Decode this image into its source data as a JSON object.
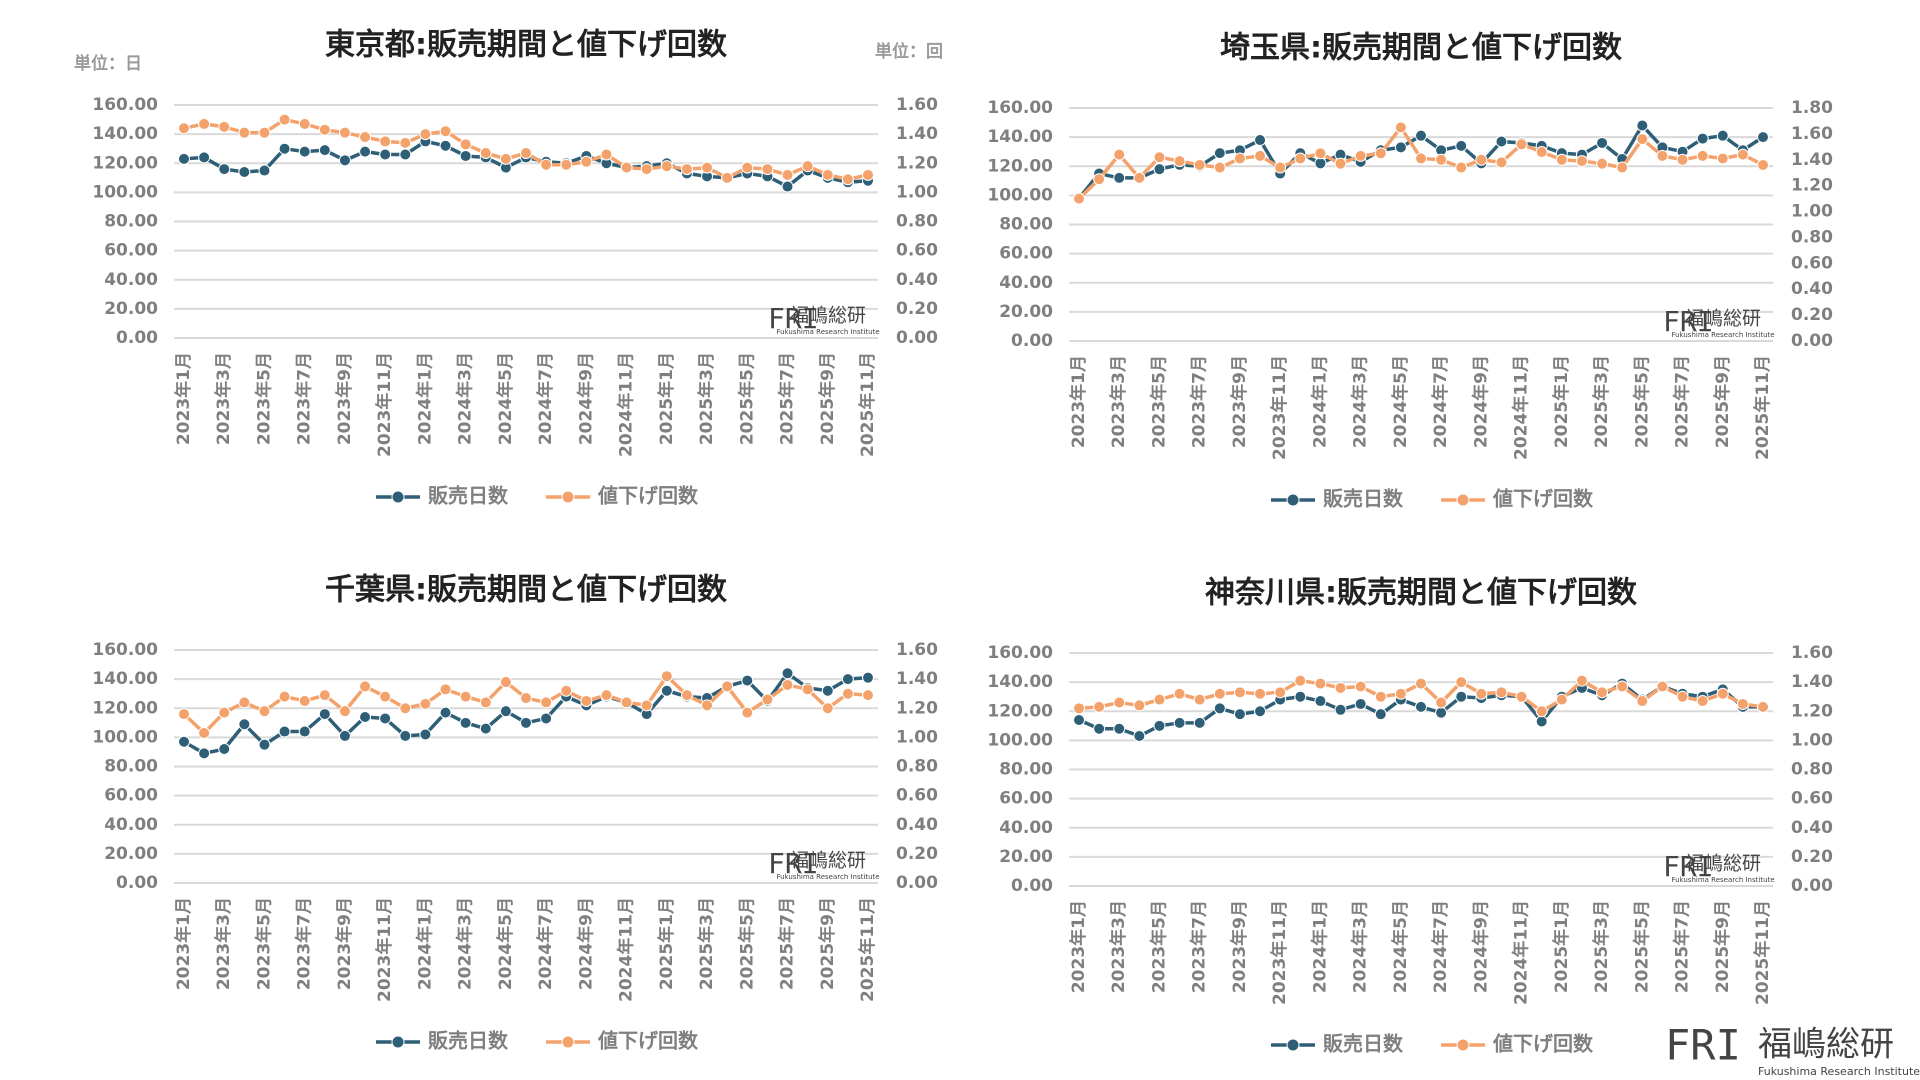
{
  "logo": {
    "mark": "FRI",
    "name": "福嶋総研",
    "sub": "Fukushima Research Institute"
  },
  "chart_data": [
    {
      "type": "line",
      "title": "東京都:販売期間と値下げ回数",
      "y_unit": "単位：日",
      "y2_unit": "単位：回",
      "categories": [
        "2023年1月",
        null,
        "2023年3月",
        null,
        "2023年5月",
        null,
        "2023年7月",
        null,
        "2023年9月",
        null,
        "2023年11月",
        null,
        "2024年1月",
        null,
        "2024年3月",
        null,
        "2024年5月",
        null,
        "2024年7月",
        null,
        "2024年9月",
        null,
        "2024年11月",
        null,
        "2025年1月",
        null,
        "2025年3月",
        null,
        "2025年5月",
        null,
        "2025年7月",
        null,
        "2025年9月",
        null,
        "2025年11月"
      ],
      "series": [
        {
          "name": "販売日数",
          "color": "#2e5f77",
          "values": [
            123,
            124,
            116,
            114,
            115,
            130,
            128,
            129,
            122,
            128,
            126,
            126,
            135,
            132,
            125,
            124,
            117,
            124,
            121,
            120,
            125,
            120,
            117,
            118,
            120,
            113,
            111,
            110,
            113,
            111,
            104,
            115,
            110,
            107,
            108
          ]
        },
        {
          "name": "値下げ回数",
          "color": "#f4a26b",
          "axis": "y2",
          "values": [
            1.44,
            1.47,
            1.45,
            1.41,
            1.41,
            1.5,
            1.47,
            1.43,
            1.41,
            1.38,
            1.35,
            1.34,
            1.4,
            1.42,
            1.33,
            1.27,
            1.23,
            1.27,
            1.19,
            1.19,
            1.21,
            1.26,
            1.17,
            1.16,
            1.18,
            1.16,
            1.17,
            1.1,
            1.17,
            1.16,
            1.12,
            1.18,
            1.12,
            1.09,
            1.12
          ]
        }
      ],
      "ylim": [
        0,
        160
      ],
      "yticks": [
        {
          "value": 0,
          "label": "0.00"
        },
        {
          "value": 20,
          "label": "20.00"
        },
        {
          "value": 40,
          "label": "40.00"
        },
        {
          "value": 60,
          "label": "60.00"
        },
        {
          "value": 80,
          "label": "80.00"
        },
        {
          "value": 100,
          "label": "100.00"
        },
        {
          "value": 120,
          "label": "120.00"
        },
        {
          "value": 140,
          "label": "140.00"
        },
        {
          "value": 160,
          "label": "160.00"
        }
      ],
      "y2lim": [
        0,
        1.6
      ],
      "y2ticks": [
        {
          "value": 0,
          "label": "0.00"
        },
        {
          "value": 0.2,
          "label": "0.20"
        },
        {
          "value": 0.4,
          "label": "0.40"
        },
        {
          "value": 0.6,
          "label": "0.60"
        },
        {
          "value": 0.8,
          "label": "0.80"
        },
        {
          "value": 1,
          "label": "1.00"
        },
        {
          "value": 1.2,
          "label": "1.20"
        },
        {
          "value": 1.4,
          "label": "1.40"
        },
        {
          "value": 1.6,
          "label": "1.60"
        }
      ],
      "grid": true,
      "legend": "bottom"
    },
    {
      "type": "line",
      "title": "埼玉県:販売期間と値下げ回数",
      "categories": [
        "2023年1月",
        null,
        "2023年3月",
        null,
        "2023年5月",
        null,
        "2023年7月",
        null,
        "2023年9月",
        null,
        "2023年11月",
        null,
        "2024年1月",
        null,
        "2024年3月",
        null,
        "2024年5月",
        null,
        "2024年7月",
        null,
        "2024年9月",
        null,
        "2024年11月",
        null,
        "2025年1月",
        null,
        "2025年3月",
        null,
        "2025年5月",
        null,
        "2025年7月",
        null,
        "2025年9月",
        null,
        "2025年11月"
      ],
      "series": [
        {
          "name": "販売日数",
          "color": "#2e5f77",
          "values": [
            98,
            115,
            112,
            112,
            118,
            121,
            120,
            129,
            131,
            138,
            115,
            129,
            122,
            128,
            123,
            131,
            133,
            141,
            131,
            134,
            122,
            137,
            136,
            134,
            129,
            128,
            136,
            125,
            148,
            133,
            130,
            139,
            141,
            131,
            140
          ]
        },
        {
          "name": "値下げ回数",
          "color": "#f4a26b",
          "axis": "y2",
          "values": [
            1.1,
            1.25,
            1.44,
            1.26,
            1.42,
            1.39,
            1.36,
            1.34,
            1.41,
            1.43,
            1.34,
            1.41,
            1.45,
            1.37,
            1.43,
            1.45,
            1.65,
            1.41,
            1.4,
            1.34,
            1.4,
            1.38,
            1.52,
            1.46,
            1.4,
            1.39,
            1.37,
            1.34,
            1.56,
            1.43,
            1.4,
            1.43,
            1.41,
            1.44,
            1.36
          ]
        }
      ],
      "ylim": [
        0,
        160
      ],
      "yticks": [
        {
          "value": 0,
          "label": "0.00"
        },
        {
          "value": 20,
          "label": "20.00"
        },
        {
          "value": 40,
          "label": "40.00"
        },
        {
          "value": 60,
          "label": "60.00"
        },
        {
          "value": 80,
          "label": "80.00"
        },
        {
          "value": 100,
          "label": "100.00"
        },
        {
          "value": 120,
          "label": "120.00"
        },
        {
          "value": 140,
          "label": "140.00"
        },
        {
          "value": 160,
          "label": "160.00"
        }
      ],
      "y2lim": [
        0,
        1.8
      ],
      "y2ticks": [
        {
          "value": 0,
          "label": "0.00"
        },
        {
          "value": 0.2,
          "label": "0.20"
        },
        {
          "value": 0.4,
          "label": "0.40"
        },
        {
          "value": 0.6,
          "label": "0.60"
        },
        {
          "value": 0.8,
          "label": "0.80"
        },
        {
          "value": 1,
          "label": "1.00"
        },
        {
          "value": 1.2,
          "label": "1.20"
        },
        {
          "value": 1.4,
          "label": "1.40"
        },
        {
          "value": 1.6,
          "label": "1.60"
        },
        {
          "value": 1.8,
          "label": "1.80"
        }
      ],
      "grid": true,
      "legend": "bottom"
    },
    {
      "type": "line",
      "title": "千葉県:販売期間と値下げ回数",
      "categories": [
        "2023年1月",
        null,
        "2023年3月",
        null,
        "2023年5月",
        null,
        "2023年7月",
        null,
        "2023年9月",
        null,
        "2023年11月",
        null,
        "2024年1月",
        null,
        "2024年3月",
        null,
        "2024年5月",
        null,
        "2024年7月",
        null,
        "2024年9月",
        null,
        "2024年11月",
        null,
        "2025年1月",
        null,
        "2025年3月",
        null,
        "2025年5月",
        null,
        "2025年7月",
        null,
        "2025年9月",
        null,
        "2025年11月"
      ],
      "series": [
        {
          "name": "販売日数",
          "color": "#2e5f77",
          "values": [
            97,
            89,
            92,
            109,
            95,
            104,
            104,
            116,
            101,
            114,
            113,
            101,
            102,
            117,
            110,
            106,
            118,
            110,
            113,
            128,
            122,
            128,
            124,
            116,
            132,
            128,
            127,
            135,
            139,
            125,
            144,
            134,
            132,
            140,
            141
          ]
        },
        {
          "name": "値下げ回数",
          "color": "#f4a26b",
          "axis": "y2",
          "values": [
            1.16,
            1.03,
            1.17,
            1.24,
            1.18,
            1.28,
            1.25,
            1.29,
            1.18,
            1.35,
            1.28,
            1.2,
            1.23,
            1.33,
            1.28,
            1.24,
            1.38,
            1.27,
            1.24,
            1.32,
            1.25,
            1.29,
            1.24,
            1.22,
            1.42,
            1.29,
            1.22,
            1.35,
            1.17,
            1.26,
            1.36,
            1.33,
            1.2,
            1.3,
            1.29
          ]
        }
      ],
      "ylim": [
        0,
        160
      ],
      "yticks": [
        {
          "value": 0,
          "label": "0.00"
        },
        {
          "value": 20,
          "label": "20.00"
        },
        {
          "value": 40,
          "label": "40.00"
        },
        {
          "value": 60,
          "label": "60.00"
        },
        {
          "value": 80,
          "label": "80.00"
        },
        {
          "value": 100,
          "label": "100.00"
        },
        {
          "value": 120,
          "label": "120.00"
        },
        {
          "value": 140,
          "label": "140.00"
        },
        {
          "value": 160,
          "label": "160.00"
        }
      ],
      "y2lim": [
        0,
        1.6
      ],
      "y2ticks": [
        {
          "value": 0,
          "label": "0.00"
        },
        {
          "value": 0.2,
          "label": "0.20"
        },
        {
          "value": 0.4,
          "label": "0.40"
        },
        {
          "value": 0.6,
          "label": "0.60"
        },
        {
          "value": 0.8,
          "label": "0.80"
        },
        {
          "value": 1,
          "label": "1.00"
        },
        {
          "value": 1.2,
          "label": "1.20"
        },
        {
          "value": 1.4,
          "label": "1.40"
        },
        {
          "value": 1.6,
          "label": "1.60"
        }
      ],
      "grid": true,
      "legend": "bottom"
    },
    {
      "type": "line",
      "title": "神奈川県:販売期間と値下げ回数",
      "categories": [
        "2023年1月",
        null,
        "2023年3月",
        null,
        "2023年5月",
        null,
        "2023年7月",
        null,
        "2023年9月",
        null,
        "2023年11月",
        null,
        "2024年1月",
        null,
        "2024年3月",
        null,
        "2024年5月",
        null,
        "2024年7月",
        null,
        "2024年9月",
        null,
        "2024年11月",
        null,
        "2025年1月",
        null,
        "2025年3月",
        null,
        "2025年5月",
        null,
        "2025年7月",
        null,
        "2025年9月",
        null,
        "2025年11月"
      ],
      "series": [
        {
          "name": "販売日数",
          "color": "#2e5f77",
          "values": [
            114,
            108,
            108,
            103,
            110,
            112,
            112,
            122,
            118,
            120,
            128,
            130,
            127,
            121,
            125,
            118,
            128,
            123,
            119,
            130,
            129,
            131,
            130,
            113,
            130,
            136,
            131,
            139,
            128,
            137,
            132,
            130,
            135,
            123,
            123
          ]
        },
        {
          "name": "値下げ回数",
          "color": "#f4a26b",
          "axis": "y2",
          "values": [
            1.22,
            1.23,
            1.26,
            1.24,
            1.28,
            1.32,
            1.28,
            1.32,
            1.33,
            1.32,
            1.33,
            1.41,
            1.39,
            1.36,
            1.37,
            1.3,
            1.32,
            1.39,
            1.26,
            1.4,
            1.32,
            1.33,
            1.3,
            1.2,
            1.28,
            1.41,
            1.33,
            1.37,
            1.27,
            1.37,
            1.3,
            1.27,
            1.32,
            1.25,
            1.23
          ]
        }
      ],
      "ylim": [
        0,
        160
      ],
      "yticks": [
        {
          "value": 0,
          "label": "0.00"
        },
        {
          "value": 20,
          "label": "20.00"
        },
        {
          "value": 40,
          "label": "40.00"
        },
        {
          "value": 60,
          "label": "60.00"
        },
        {
          "value": 80,
          "label": "80.00"
        },
        {
          "value": 100,
          "label": "100.00"
        },
        {
          "value": 120,
          "label": "120.00"
        },
        {
          "value": 140,
          "label": "140.00"
        },
        {
          "value": 160,
          "label": "160.00"
        }
      ],
      "y2lim": [
        0,
        1.6
      ],
      "y2ticks": [
        {
          "value": 0,
          "label": "0.00"
        },
        {
          "value": 0.2,
          "label": "0.20"
        },
        {
          "value": 0.4,
          "label": "0.40"
        },
        {
          "value": 0.6,
          "label": "0.60"
        },
        {
          "value": 0.8,
          "label": "0.80"
        },
        {
          "value": 1,
          "label": "1.00"
        },
        {
          "value": 1.2,
          "label": "1.20"
        },
        {
          "value": 1.4,
          "label": "1.40"
        },
        {
          "value": 1.6,
          "label": "1.60"
        }
      ],
      "grid": true,
      "legend": "bottom"
    }
  ]
}
